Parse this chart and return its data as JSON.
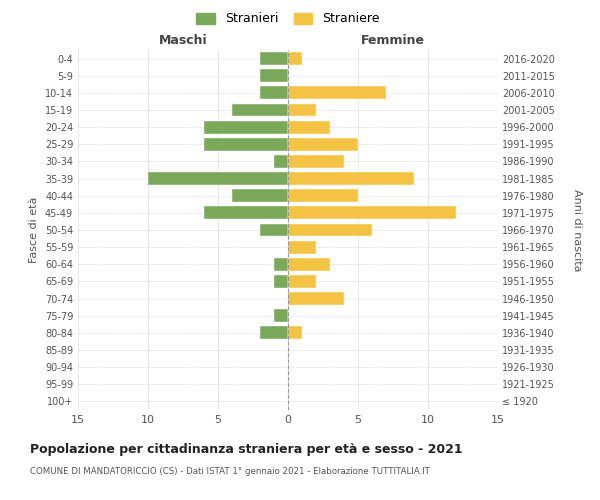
{
  "age_groups": [
    "100+",
    "95-99",
    "90-94",
    "85-89",
    "80-84",
    "75-79",
    "70-74",
    "65-69",
    "60-64",
    "55-59",
    "50-54",
    "45-49",
    "40-44",
    "35-39",
    "30-34",
    "25-29",
    "20-24",
    "15-19",
    "10-14",
    "5-9",
    "0-4"
  ],
  "birth_years": [
    "≤ 1920",
    "1921-1925",
    "1926-1930",
    "1931-1935",
    "1936-1940",
    "1941-1945",
    "1946-1950",
    "1951-1955",
    "1956-1960",
    "1961-1965",
    "1966-1970",
    "1971-1975",
    "1976-1980",
    "1981-1985",
    "1986-1990",
    "1991-1995",
    "1996-2000",
    "2001-2005",
    "2006-2010",
    "2011-2015",
    "2016-2020"
  ],
  "males": [
    0,
    0,
    0,
    0,
    2,
    1,
    0,
    1,
    1,
    0,
    2,
    6,
    4,
    10,
    1,
    6,
    6,
    4,
    2,
    2,
    2
  ],
  "females": [
    0,
    0,
    0,
    0,
    1,
    0,
    4,
    2,
    3,
    2,
    6,
    12,
    5,
    9,
    4,
    5,
    3,
    2,
    7,
    0,
    1
  ],
  "xlim": 15,
  "title": "Popolazione per cittadinanza straniera per età e sesso - 2021",
  "subtitle": "COMUNE DI MANDATORICCIO (CS) - Dati ISTAT 1° gennaio 2021 - Elaborazione TUTTITALIA.IT",
  "ylabel_left": "Fasce di età",
  "ylabel_right": "Anni di nascita",
  "xlabel_left": "Maschi",
  "xlabel_right": "Femmine",
  "legend_males": "Stranieri",
  "legend_females": "Straniere",
  "bar_color_males": "#7aaa59",
  "bar_color_females": "#f5c343"
}
